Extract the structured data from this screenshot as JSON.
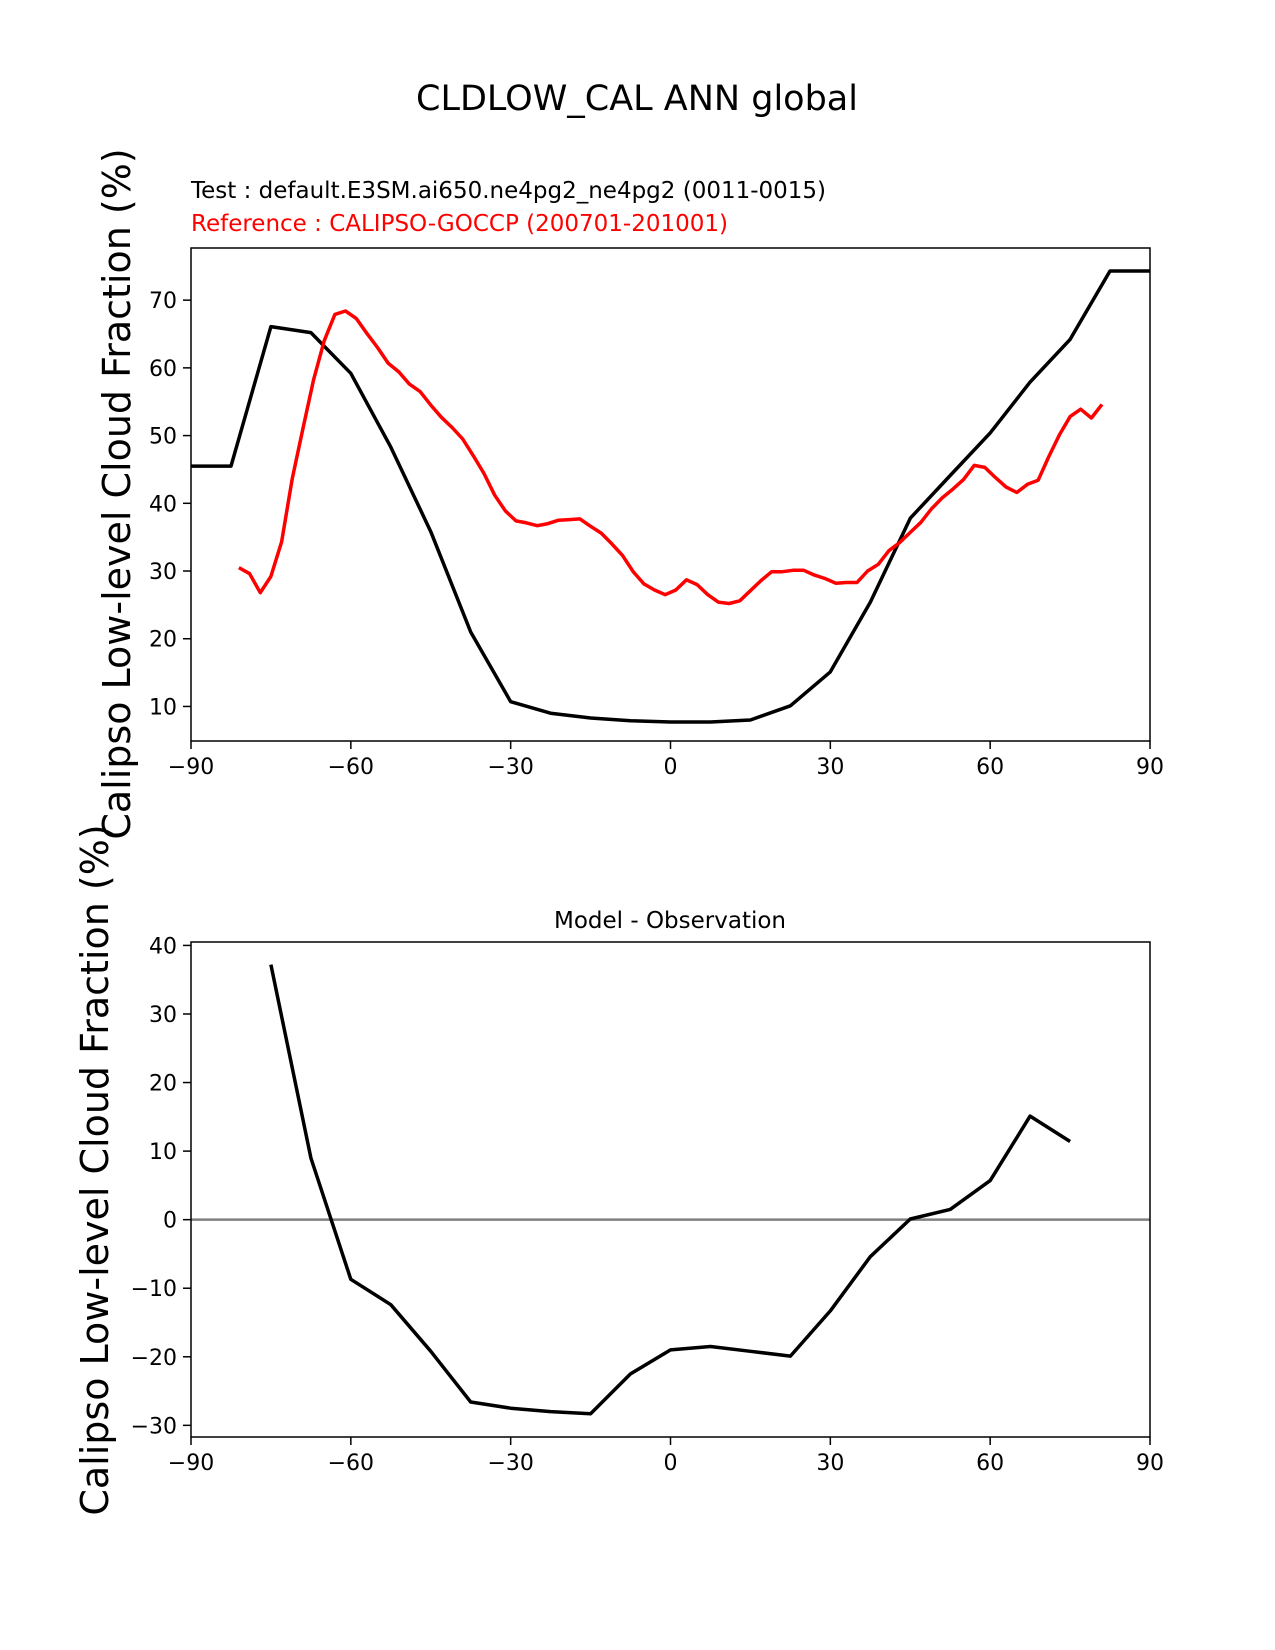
{
  "figure": {
    "title": "CLDLOW_CAL ANN global"
  },
  "colors": {
    "test": "#000000",
    "reference": "#ff0000",
    "zero_line": "#808080",
    "axes": "#000000"
  },
  "chart_data": [
    {
      "type": "line",
      "test_label": "Test : default.E3SM.ai650.ne4pg2_ne4pg2 (0011-0015)",
      "reference_label": "Reference : CALIPSO-GOCCP (200701-201001)",
      "ylabel": "Calipso Low-level Cloud Fraction (%)",
      "xlim": [
        -90,
        90
      ],
      "ylim": [
        4.9,
        77.7
      ],
      "xticks": [
        -90,
        -60,
        -30,
        0,
        30,
        60,
        90
      ],
      "yticks": [
        10,
        20,
        30,
        40,
        50,
        60,
        70
      ],
      "xtick_labels": [
        "−90",
        "−60",
        "−30",
        "0",
        "30",
        "60",
        "90"
      ],
      "ytick_labels": [
        "10",
        "20",
        "30",
        "40",
        "50",
        "60",
        "70"
      ],
      "series": [
        {
          "role": "test",
          "x": [
            -90,
            -82.5,
            -75,
            -67.5,
            -60,
            -52.5,
            -45,
            -37.5,
            -30,
            -22.5,
            -15,
            -7.5,
            0,
            7.5,
            15,
            22.5,
            30,
            37.5,
            45,
            52.5,
            60,
            67.5,
            75,
            82.5,
            90
          ],
          "y": [
            45.5,
            45.5,
            66.1,
            65.2,
            59.2,
            48.3,
            35.8,
            21.0,
            10.7,
            9.0,
            8.3,
            7.9,
            7.7,
            7.7,
            8.0,
            10.1,
            15.1,
            25.4,
            37.8,
            44.1,
            50.4,
            57.9,
            64.2,
            74.3,
            74.3
          ]
        },
        {
          "role": "reference",
          "x": [
            -81,
            -79,
            -77,
            -75,
            -73,
            -71,
            -69,
            -67,
            -65,
            -63,
            -61,
            -59,
            -57,
            -55,
            -53,
            -51,
            -49,
            -47,
            -45,
            -43,
            -41,
            -39,
            -37,
            -35,
            -33,
            -31,
            -29,
            -27,
            -25,
            -23,
            -21,
            -19,
            -17,
            -15,
            -13,
            -11,
            -9,
            -7,
            -5,
            -3,
            -1,
            1,
            3,
            5,
            7,
            9,
            11,
            13,
            15,
            17,
            19,
            21,
            23,
            25,
            27,
            29,
            31,
            33,
            35,
            37,
            39,
            41,
            43,
            45,
            47,
            49,
            51,
            53,
            55,
            57,
            59,
            61,
            63,
            65,
            67,
            69,
            71,
            73,
            75,
            77,
            79,
            81
          ],
          "y": [
            30.5,
            29.6,
            26.8,
            29.2,
            34.3,
            43.6,
            51.0,
            58.2,
            64.0,
            67.9,
            68.4,
            67.3,
            65.1,
            63.0,
            60.7,
            59.4,
            57.6,
            56.5,
            54.5,
            52.7,
            51.2,
            49.5,
            47.0,
            44.4,
            41.2,
            38.9,
            37.4,
            37.1,
            36.7,
            37.0,
            37.5,
            37.6,
            37.7,
            36.6,
            35.6,
            34.0,
            32.3,
            29.9,
            28.1,
            27.2,
            26.5,
            27.2,
            28.7,
            28.0,
            26.5,
            25.4,
            25.2,
            25.6,
            27.1,
            28.6,
            29.9,
            29.9,
            30.1,
            30.1,
            29.4,
            28.9,
            28.2,
            28.3,
            28.3,
            30.0,
            31.0,
            33.0,
            34.2,
            35.7,
            37.2,
            39.2,
            40.8,
            42.1,
            43.5,
            45.6,
            45.3,
            43.8,
            42.4,
            41.6,
            42.8,
            43.4,
            46.9,
            50.1,
            52.8,
            53.9,
            52.6,
            54.6
          ]
        }
      ]
    },
    {
      "type": "line",
      "title": "Model - Observation",
      "ylabel": "Calipso Low-level Cloud Fraction (%)",
      "xlim": [
        -90,
        90
      ],
      "ylim": [
        -31.7,
        40.5
      ],
      "xticks": [
        -90,
        -60,
        -30,
        0,
        30,
        60,
        90
      ],
      "yticks": [
        -30,
        -20,
        -10,
        0,
        10,
        20,
        30,
        40
      ],
      "xtick_labels": [
        "−90",
        "−60",
        "−30",
        "0",
        "30",
        "60",
        "90"
      ],
      "ytick_labels": [
        "−30",
        "−20",
        "−10",
        "0",
        "10",
        "20",
        "30",
        "40"
      ],
      "zero_line": 0,
      "series": [
        {
          "role": "difference",
          "x": [
            -75,
            -67.5,
            -60,
            -52.5,
            -45,
            -37.5,
            -30,
            -22.5,
            -15,
            -7.5,
            0,
            7.5,
            15,
            22.5,
            30,
            37.5,
            45,
            52.5,
            60,
            67.5,
            75
          ],
          "y": [
            37.2,
            9.0,
            -8.7,
            -12.4,
            -19.2,
            -26.6,
            -27.5,
            -28.0,
            -28.3,
            -22.5,
            -19.0,
            -18.5,
            -19.2,
            -19.9,
            -13.3,
            -5.4,
            0.1,
            1.5,
            5.7,
            15.1,
            11.4
          ]
        }
      ]
    }
  ]
}
